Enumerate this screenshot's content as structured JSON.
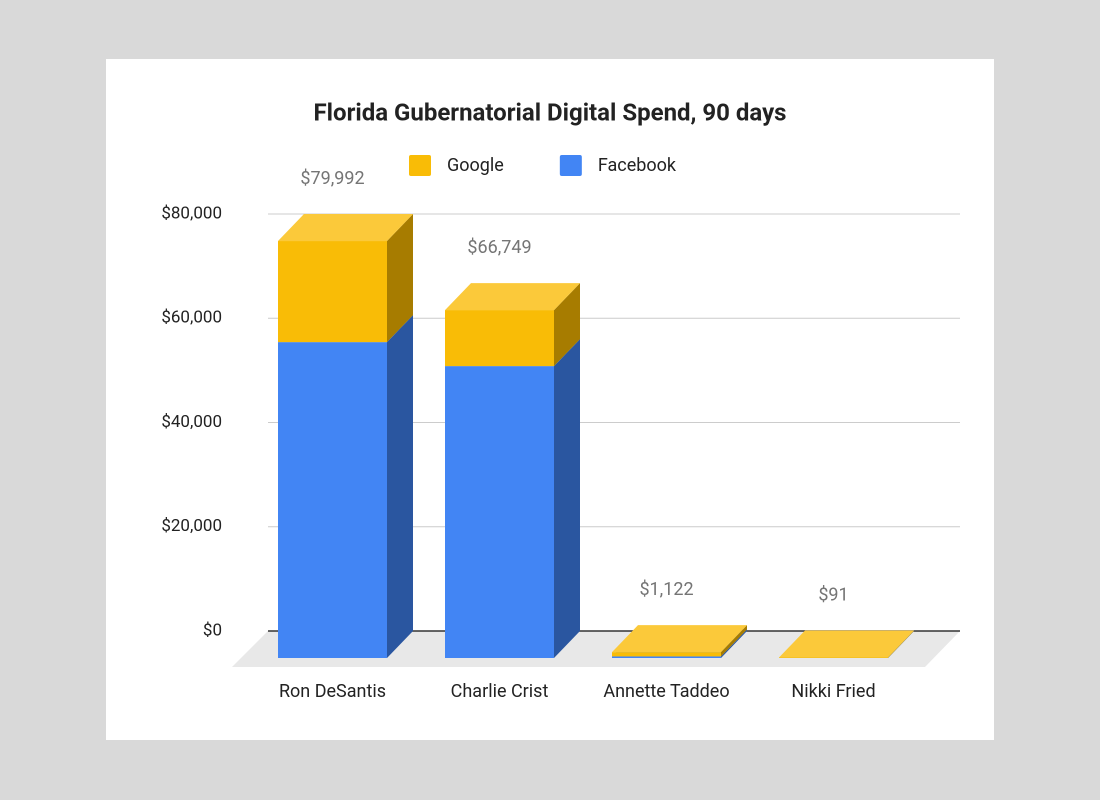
{
  "chart_data": {
    "type": "stacked-bar-3d",
    "title": "Florida Gubernatorial Digital Spend, 90 days",
    "categories": [
      "Ron DeSantis",
      "Charlie Crist",
      "Annette Taddeo",
      "Nikki Fried"
    ],
    "series": [
      {
        "name": "Google",
        "color": "#f9bc06",
        "top_color": "#fbc93a",
        "side_color": "#a77c00",
        "values": [
          19392,
          10749,
          822,
          91
        ]
      },
      {
        "name": "Facebook",
        "color": "#4285f4",
        "top_color": "#6a9ef6",
        "side_color": "#2a56a0",
        "values": [
          60600,
          56000,
          300,
          0
        ]
      }
    ],
    "stack_order": [
      "Facebook",
      "Google"
    ],
    "totals": [
      79992,
      66749,
      1122,
      91
    ],
    "total_labels": [
      "$79,992",
      "$66,749",
      "$1,122",
      "$91"
    ],
    "ylim": [
      0,
      80000
    ],
    "yticks": [
      {
        "value": 0,
        "label": "$0"
      },
      {
        "value": 20000,
        "label": "$20,000"
      },
      {
        "value": 40000,
        "label": "$40,000"
      },
      {
        "value": 60000,
        "label": "$60,000"
      },
      {
        "value": 80000,
        "label": "$80,000"
      }
    ],
    "grid": true
  }
}
